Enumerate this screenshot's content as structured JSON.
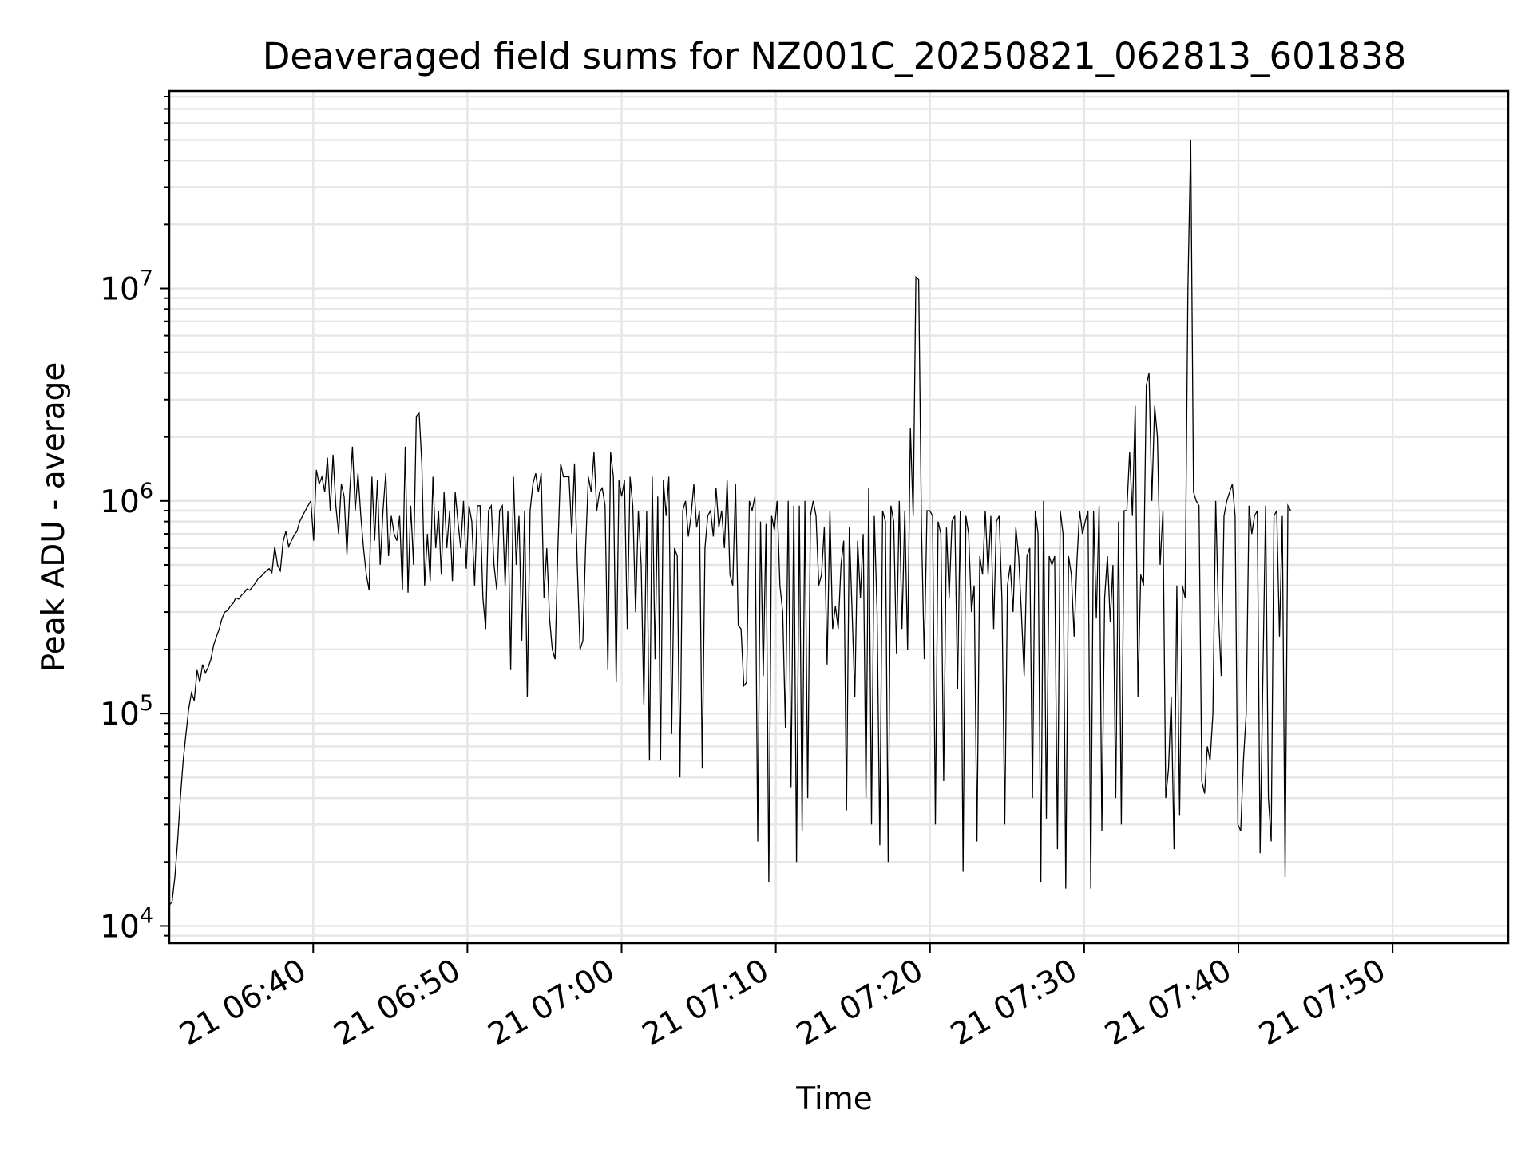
{
  "chart_data": {
    "type": "line",
    "title": "Deaveraged field sums for NZ001C_20250821_062813_601838",
    "xlabel": "Time",
    "ylabel": "Peak ADU - average",
    "yscale": "log",
    "x_tick_labels": [
      "21 06:40",
      "21 06:50",
      "21 07:00",
      "21 07:10",
      "21 07:20",
      "21 07:30",
      "21 07:40",
      "21 07:50"
    ],
    "y_tick_labels": [
      {
        "base": "10",
        "exp": "4"
      },
      {
        "base": "10",
        "exp": "5"
      },
      {
        "base": "10",
        "exp": "6"
      },
      {
        "base": "10",
        "exp": "7"
      }
    ],
    "xlim": [
      "2025-08-21 06:30:40",
      "2025-08-21 07:57:30"
    ],
    "ylim": [
      8300,
      85000000
    ],
    "grid": "on",
    "line_color": "#000000",
    "series": [
      {
        "x_start": "2025-08-21 06:30:40",
        "x_step_seconds": 10.8,
        "values": [
          12500,
          13000,
          17000,
          25000,
          40000,
          60000,
          80000,
          105000,
          125000,
          115000,
          160000,
          140000,
          170000,
          155000,
          165000,
          180000,
          210000,
          230000,
          250000,
          280000,
          300000,
          305000,
          320000,
          330000,
          350000,
          345000,
          360000,
          370000,
          385000,
          380000,
          395000,
          410000,
          430000,
          440000,
          455000,
          470000,
          480000,
          460000,
          610000,
          500000,
          470000,
          640000,
          720000,
          610000,
          650000,
          690000,
          720000,
          800000,
          850000,
          900000,
          950000,
          1000000,
          650000,
          1400000,
          1200000,
          1300000,
          1100000,
          1600000,
          900000,
          1650000,
          950000,
          700000,
          1200000,
          1050000,
          560000,
          1100000,
          1800000,
          900000,
          1350000,
          850000,
          600000,
          450000,
          380000,
          1300000,
          650000,
          1250000,
          500000,
          900000,
          1350000,
          550000,
          850000,
          700000,
          650000,
          850000,
          380000,
          1800000,
          370000,
          950000,
          500000,
          2500000,
          2600000,
          1500000,
          400000,
          700000,
          420000,
          1300000,
          600000,
          900000,
          450000,
          1100000,
          600000,
          900000,
          420000,
          1100000,
          800000,
          600000,
          1000000,
          480000,
          950000,
          800000,
          400000,
          950000,
          950000,
          350000,
          250000,
          900000,
          950000,
          500000,
          380000,
          900000,
          950000,
          400000,
          900000,
          160000,
          1300000,
          500000,
          850000,
          220000,
          900000,
          120000,
          900000,
          1200000,
          1350000,
          1100000,
          1350000,
          350000,
          600000,
          280000,
          200000,
          180000,
          600000,
          1500000,
          1300000,
          1300000,
          1300000,
          700000,
          1500000,
          500000,
          200000,
          220000,
          600000,
          1300000,
          1100000,
          1700000,
          900000,
          1100000,
          1150000,
          950000,
          160000,
          1700000,
          1300000,
          140000,
          1250000,
          1050000,
          1250000,
          250000,
          1300000,
          950000,
          300000,
          900000,
          500000,
          110000,
          900000,
          60000,
          1300000,
          180000,
          1050000,
          60000,
          1250000,
          850000,
          1300000,
          80000,
          600000,
          550000,
          50000,
          900000,
          1000000,
          680000,
          850000,
          1200000,
          750000,
          900000,
          55000,
          600000,
          850000,
          900000,
          680000,
          1150000,
          750000,
          900000,
          600000,
          1250000,
          450000,
          400000,
          1200000,
          260000,
          250000,
          135000,
          140000,
          1000000,
          900000,
          1050000,
          25000,
          800000,
          150000,
          780000,
          16000,
          850000,
          730000,
          1000000,
          400000,
          300000,
          85000,
          1000000,
          45000,
          950000,
          20000,
          950000,
          28000,
          1000000,
          40000,
          850000,
          1000000,
          850000,
          400000,
          450000,
          750000,
          170000,
          900000,
          250000,
          320000,
          250000,
          500000,
          650000,
          35000,
          750000,
          300000,
          120000,
          650000,
          350000,
          700000,
          40000,
          1150000,
          30000,
          850000,
          300000,
          24000,
          900000,
          800000,
          20000,
          950000,
          800000,
          190000,
          1000000,
          250000,
          900000,
          200000,
          2200000,
          850000,
          11300000,
          11000000,
          750000,
          180000,
          900000,
          900000,
          850000,
          30000,
          800000,
          700000,
          48000,
          750000,
          350000,
          800000,
          850000,
          130000,
          900000,
          18000,
          850000,
          700000,
          300000,
          400000,
          25000,
          550000,
          450000,
          900000,
          450000,
          850000,
          250000,
          800000,
          850000,
          340000,
          30000,
          400000,
          500000,
          300000,
          750000,
          550000,
          300000,
          150000,
          550000,
          600000,
          40000,
          900000,
          700000,
          16000,
          1000000,
          32000,
          550000,
          500000,
          550000,
          23000,
          900000,
          700000,
          15000,
          550000,
          450000,
          230000,
          520000,
          900000,
          700000,
          800000,
          900000,
          15000,
          900000,
          280000,
          950000,
          28000,
          350000,
          550000,
          270000,
          500000,
          40000,
          800000,
          30000,
          900000,
          900000,
          1700000,
          850000,
          2800000,
          120000,
          450000,
          400000,
          3500000,
          4000000,
          1000000,
          2800000,
          2000000,
          500000,
          900000,
          40000,
          55000,
          120000,
          23000,
          400000,
          33000,
          400000,
          350000,
          10000000,
          50000000,
          1100000,
          1000000,
          950000,
          48000,
          42000,
          70000,
          60000,
          100000,
          1000000,
          300000,
          150000,
          850000,
          1000000,
          1100000,
          1200000,
          850000,
          30000,
          28000,
          60000,
          100000,
          950000,
          700000,
          850000,
          900000,
          22000,
          150000,
          950000,
          40000,
          25000,
          850000,
          900000,
          230000,
          850000,
          17000,
          950000,
          900000
        ]
      }
    ]
  }
}
